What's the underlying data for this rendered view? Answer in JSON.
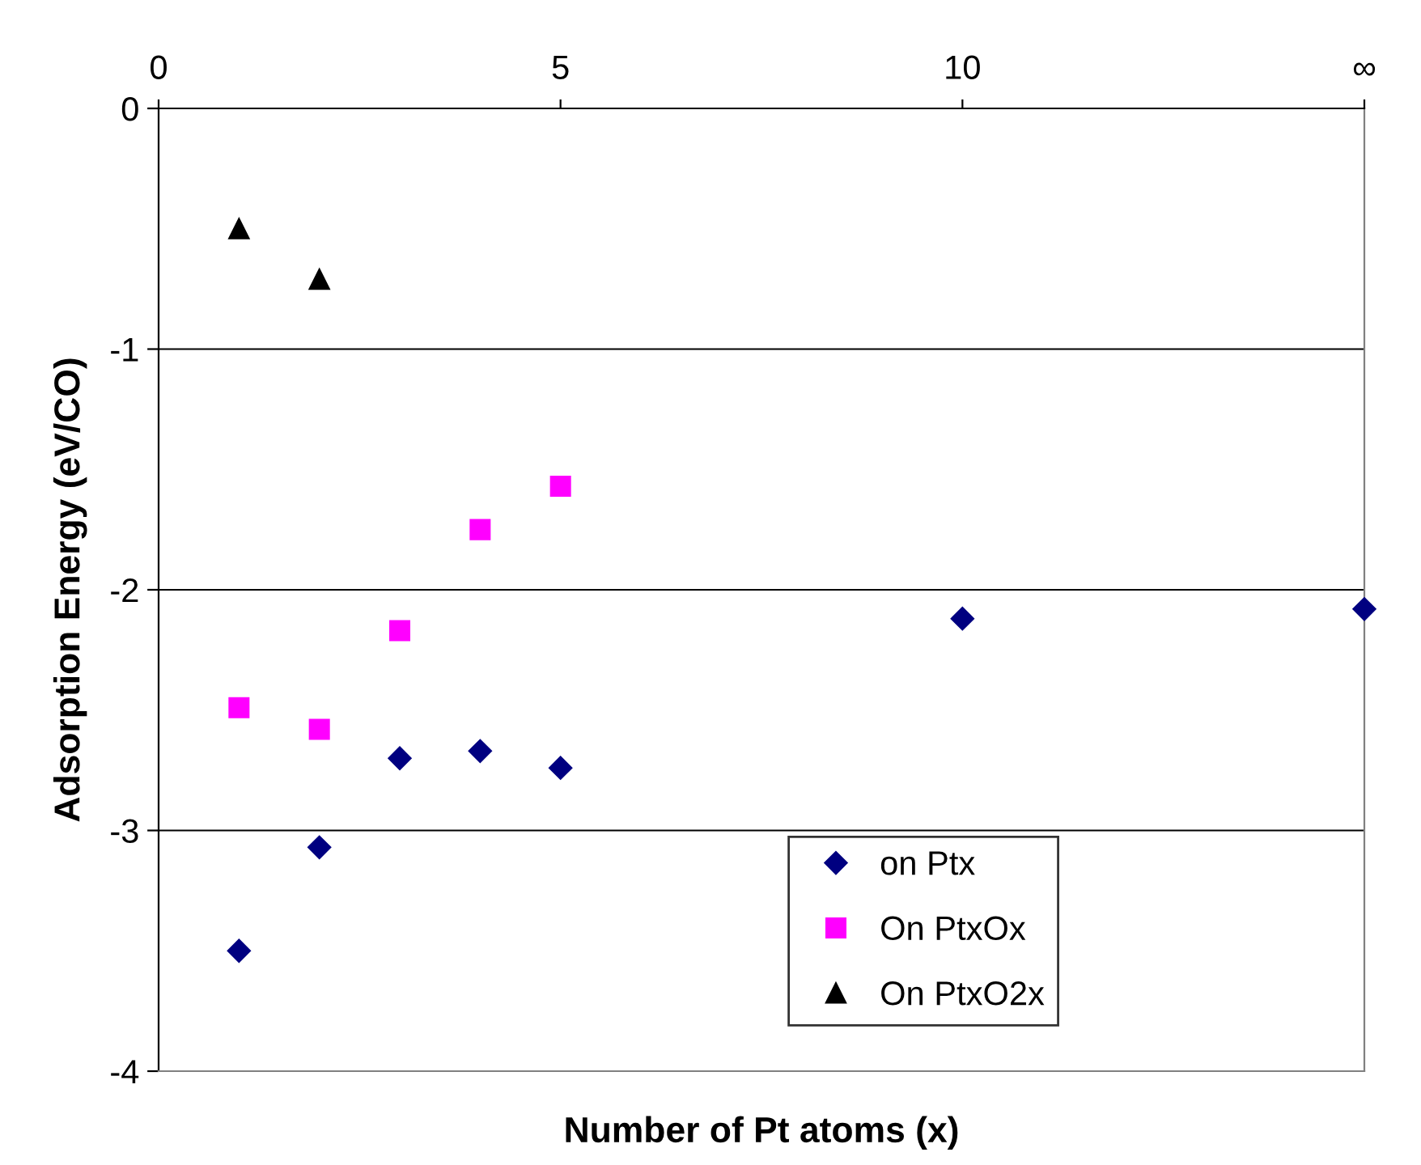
{
  "chart_data": {
    "type": "scatter",
    "xlabel": "Number of Pt atoms (x)",
    "ylabel": "Adsorption Energy (eV/CO)",
    "xlim": [
      0,
      15
    ],
    "xticks": [
      0,
      5,
      10,
      {
        "value": 15,
        "label": "∞"
      }
    ],
    "ylim": [
      -4,
      0
    ],
    "yticks": [
      -4,
      -3,
      -2,
      -1,
      0
    ],
    "grid": "y",
    "legend": "bottom right",
    "series": [
      {
        "name": "on Ptx",
        "color": "#000080",
        "marker": "diamond",
        "x": [
          1,
          2,
          3,
          4,
          5,
          10,
          15
        ],
        "values": [
          -3.5,
          -3.07,
          -2.7,
          -2.67,
          -2.74,
          -2.12,
          -2.08
        ]
      },
      {
        "name": "On PtxOx",
        "color": "#ff00ff",
        "marker": "square",
        "x": [
          1,
          2,
          3,
          4,
          5
        ],
        "values": [
          -2.49,
          -2.58,
          -2.17,
          -1.75,
          -1.57
        ]
      },
      {
        "name": "On PtxO2x",
        "color": "#000000",
        "marker": "triangle",
        "x": [
          1,
          2
        ],
        "values": [
          -0.5,
          -0.71
        ]
      }
    ]
  }
}
